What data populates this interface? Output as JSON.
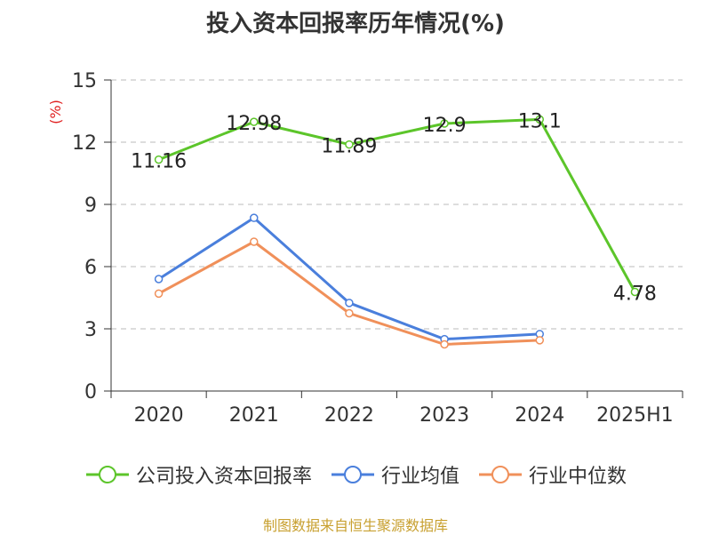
{
  "title": "投入资本回报率历年情况(%)",
  "source": "制图数据来自恒生聚源数据库",
  "chart_data": {
    "type": "line",
    "unit_label": "(%)",
    "categories": [
      "2020",
      "2021",
      "2022",
      "2023",
      "2024",
      "2025H1"
    ],
    "ylim": [
      0,
      15
    ],
    "yticks": [
      "0",
      "3",
      "6",
      "9",
      "12",
      "15"
    ],
    "grid": true,
    "legend_position": "bottom",
    "series": [
      {
        "name": "公司投入资本回报率",
        "color": "#5cc52a",
        "values": [
          11.16,
          12.98,
          11.89,
          12.9,
          13.1,
          4.78
        ],
        "labels": [
          "11.16",
          "12.98",
          "11.89",
          "12.9",
          "13.1",
          "4.78"
        ]
      },
      {
        "name": "行业均值",
        "color": "#4a7fdc",
        "values": [
          5.4,
          8.35,
          4.25,
          2.5,
          2.75,
          null
        ]
      },
      {
        "name": "行业中位数",
        "color": "#f0905a",
        "values": [
          4.7,
          7.2,
          3.75,
          2.25,
          2.45,
          null
        ]
      }
    ]
  }
}
